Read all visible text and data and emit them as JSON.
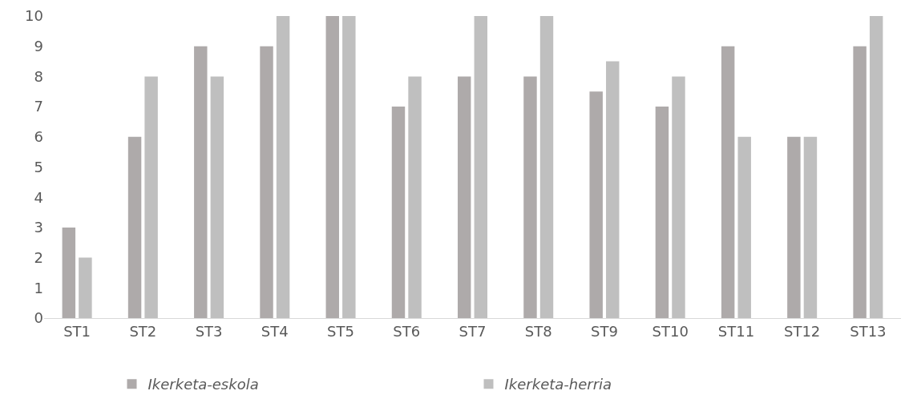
{
  "chart_data": {
    "type": "bar",
    "categories": [
      "ST1",
      "ST2",
      "ST3",
      "ST4",
      "ST5",
      "ST6",
      "ST7",
      "ST8",
      "ST9",
      "ST10",
      "ST11",
      "ST12",
      "ST13"
    ],
    "series": [
      {
        "name": "Ikerketa-eskola",
        "color": "#aeaaaa",
        "values": [
          3,
          6,
          9,
          9,
          10,
          7,
          8,
          8,
          7.5,
          7,
          9,
          6,
          9
        ]
      },
      {
        "name": "Ikerketa-herria",
        "color": "#bfbfbf",
        "values": [
          2,
          8,
          8,
          10,
          10,
          8,
          10,
          10,
          8.5,
          8,
          6,
          6,
          10
        ]
      }
    ],
    "ylim": [
      0,
      10
    ],
    "yticks": [
      0,
      1,
      2,
      3,
      4,
      5,
      6,
      7,
      8,
      9,
      10
    ],
    "legend": "bottom"
  }
}
